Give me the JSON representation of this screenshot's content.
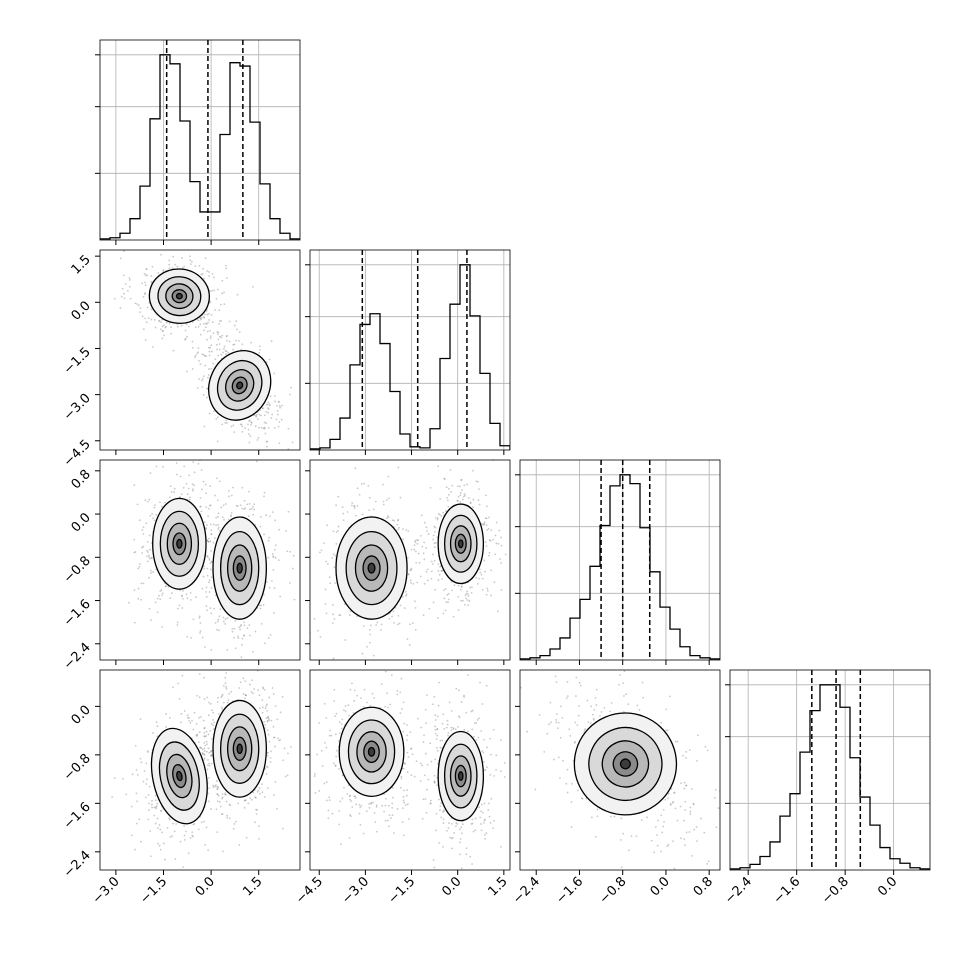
{
  "chart_data": {
    "type": "corner",
    "n_params": 4,
    "grid": true,
    "quantile_lines": "dashed",
    "colors": {
      "line": "#000000",
      "grid": "#b0b0b0",
      "points": "#888888",
      "background": "#ffffff"
    },
    "axis_ranges": [
      [
        -3.5,
        2.8
      ],
      [
        -4.8,
        1.7
      ],
      [
        -2.7,
        1.0
      ],
      [
        -2.7,
        0.6
      ]
    ],
    "ticks": [
      [
        "−3.0",
        "−1.5",
        "0.0",
        "1.5"
      ],
      [
        "−4.5",
        "−3.0",
        "−1.5",
        "0.0",
        "1.5"
      ],
      [
        "−2.4",
        "−1.6",
        "−0.8",
        "0.0",
        "0.8"
      ],
      [
        "−2.4",
        "−1.6",
        "−0.8",
        "0.0"
      ]
    ],
    "tick_values": [
      [
        -3.0,
        -1.5,
        0.0,
        1.5
      ],
      [
        -4.5,
        -3.0,
        -1.5,
        0.0,
        1.5
      ],
      [
        -2.4,
        -1.6,
        -0.8,
        0.0,
        0.8
      ],
      [
        -2.4,
        -1.6,
        -0.8,
        0.0
      ]
    ],
    "quantiles": [
      [
        -1.4,
        -0.1,
        1.0
      ],
      [
        -3.1,
        -1.3,
        0.3
      ],
      [
        -1.2,
        -0.8,
        -0.3
      ],
      [
        -1.35,
        -0.95,
        -0.55
      ]
    ],
    "histograms": [
      {
        "edges_start": -3.5,
        "bin_width": 0.315,
        "counts": [
          1,
          2,
          6,
          19,
          48,
          108,
          165,
          157,
          106,
          52,
          25,
          25,
          94,
          158,
          155,
          105,
          50,
          19,
          6,
          1
        ]
      },
      {
        "edges_start": -4.8,
        "bin_width": 0.325,
        "counts": [
          1,
          2,
          10,
          30,
          80,
          118,
          128,
          100,
          55,
          15,
          3,
          2,
          20,
          86,
          137,
          174,
          126,
          72,
          25,
          4
        ]
      },
      {
        "edges_start": -2.7,
        "bin_width": 0.185,
        "counts": [
          1,
          2,
          4,
          10,
          20,
          38,
          55,
          85,
          122,
          158,
          168,
          160,
          120,
          80,
          48,
          28,
          12,
          4,
          2,
          1
        ]
      },
      {
        "edges_start": -2.7,
        "bin_width": 0.165,
        "counts": [
          1,
          2,
          5,
          12,
          25,
          48,
          68,
          105,
          142,
          165,
          165,
          145,
          100,
          65,
          40,
          20,
          10,
          6,
          2,
          1
        ]
      }
    ],
    "clusters_2d": {
      "1_0": [
        {
          "cx": -1.0,
          "cy": 0.2,
          "sx": 0.45,
          "sy": 0.42,
          "rho": -0.1
        },
        {
          "cx": 0.9,
          "cy": -2.7,
          "sx": 0.45,
          "sy": 0.55,
          "rho": -0.45
        }
      ],
      "2_0": [
        {
          "cx": -1.0,
          "cy": -0.55,
          "sx": 0.4,
          "sy": 0.4,
          "rho": 0.0
        },
        {
          "cx": 0.9,
          "cy": -1.0,
          "sx": 0.4,
          "sy": 0.45,
          "rho": 0.0
        }
      ],
      "2_1": [
        {
          "cx": -2.8,
          "cy": -1.0,
          "sx": 0.55,
          "sy": 0.45,
          "rho": 0.0
        },
        {
          "cx": 0.1,
          "cy": -0.55,
          "sx": 0.35,
          "sy": 0.35,
          "rho": 0.0
        }
      ],
      "3_0": [
        {
          "cx": -1.0,
          "cy": -1.15,
          "sx": 0.4,
          "sy": 0.38,
          "rho": 0.2
        },
        {
          "cx": 0.9,
          "cy": -0.7,
          "sx": 0.4,
          "sy": 0.38,
          "rho": 0.0
        }
      ],
      "3_1": [
        {
          "cx": -2.8,
          "cy": -0.75,
          "sx": 0.5,
          "sy": 0.35,
          "rho": 0.0
        },
        {
          "cx": 0.1,
          "cy": -1.15,
          "sx": 0.35,
          "sy": 0.35,
          "rho": 0.0
        }
      ],
      "3_2": [
        {
          "cx": -0.75,
          "cy": -0.95,
          "sx": 0.45,
          "sy": 0.4,
          "rho": -0.4
        }
      ]
    }
  }
}
